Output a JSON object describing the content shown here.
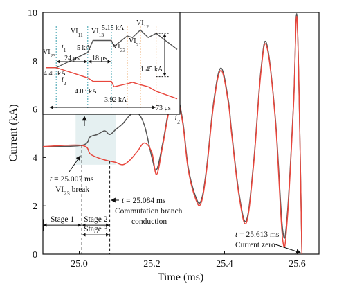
{
  "chart_data": {
    "type": "line",
    "xlabel": "Time (ms)",
    "ylabel": "Current (kA)",
    "xlim": [
      24.9,
      25.66
    ],
    "ylim": [
      0,
      10
    ],
    "xticks": [
      25.0,
      25.2,
      25.4,
      25.6
    ],
    "xtick_labels": [
      "25.0",
      "25.2",
      "25.4",
      "25.6"
    ],
    "yticks": [
      0,
      2,
      4,
      6,
      8,
      10
    ],
    "ytick_labels": [
      "0",
      "2",
      "4",
      "6",
      "8",
      "10"
    ],
    "grid": false,
    "series": [
      {
        "name": "i1",
        "label": "i",
        "sub": "1",
        "color": "#555555",
        "x": [
          24.9,
          25.007,
          25.03,
          25.05,
          25.07,
          25.084,
          25.1,
          25.12,
          25.14,
          25.16,
          25.18,
          25.2,
          25.213,
          25.23,
          25.25,
          25.268,
          25.285,
          25.3,
          25.32,
          25.335,
          25.35,
          25.37,
          25.39,
          25.41,
          25.42,
          25.44,
          25.46,
          25.48,
          25.5,
          25.516,
          25.54,
          25.56,
          25.573,
          25.59,
          25.6,
          25.613
        ],
        "y": [
          4.45,
          4.5,
          4.85,
          4.95,
          5.1,
          4.95,
          5.15,
          5.4,
          5.75,
          5.85,
          5.3,
          4.0,
          3.5,
          4.6,
          6.2,
          6.6,
          5.5,
          3.6,
          2.4,
          2.2,
          3.5,
          6.3,
          7.7,
          6.4,
          5.0,
          2.5,
          1.4,
          3.8,
          7.6,
          8.7,
          5.6,
          1.0,
          1.7,
          6.3,
          9.7,
          0.0
        ]
      },
      {
        "name": "i2",
        "label": "i",
        "sub": "2",
        "color": "#e8463c",
        "x": [
          24.9,
          25.007,
          25.03,
          25.05,
          25.07,
          25.084,
          25.1,
          25.12,
          25.14,
          25.16,
          25.18,
          25.2,
          25.213,
          25.23,
          25.25,
          25.268,
          25.285,
          25.3,
          25.32,
          25.335,
          25.35,
          25.37,
          25.39,
          25.41,
          25.42,
          25.44,
          25.46,
          25.48,
          25.5,
          25.516,
          25.54,
          25.56,
          25.573,
          25.59,
          25.6,
          25.613
        ],
        "y": [
          4.45,
          4.5,
          4.15,
          4.0,
          3.9,
          3.85,
          3.8,
          3.7,
          3.9,
          4.25,
          4.6,
          4.2,
          3.3,
          4.5,
          6.1,
          6.5,
          5.4,
          3.5,
          2.3,
          2.1,
          3.4,
          6.2,
          7.6,
          6.3,
          4.9,
          2.4,
          1.3,
          3.7,
          7.5,
          8.6,
          5.5,
          0.6,
          1.5,
          6.2,
          9.6,
          0.0
        ]
      }
    ],
    "series_labels": [
      {
        "series": "i1",
        "x": 25.27,
        "y": 6.95
      },
      {
        "series": "i2",
        "x": 25.27,
        "y": 5.55
      }
    ],
    "annotations": {
      "break": {
        "t_prefix": "t",
        "value_text": "= 25.007 ms",
        "line2_pre": "VI",
        "line2_sub": "23",
        "line2_post": " break",
        "x": 25.007
      },
      "commutation": {
        "t_prefix": "t",
        "value_text": "= 25.084 ms",
        "line2": "Commutation branch",
        "line3": "conduction",
        "x": 25.084
      },
      "zero": {
        "t_prefix": "t",
        "value_text": "= 25.613 ms",
        "line2": "Current zero",
        "x": 25.613
      },
      "stages": [
        {
          "label": "Stage 1",
          "x0": 24.9,
          "x1": 25.007,
          "y": 1.2
        },
        {
          "label": "Stage 2",
          "x0": 25.007,
          "x1": 25.084,
          "y": 1.2
        },
        {
          "label": "Stage 3",
          "x0": 25.007,
          "x1": 25.084,
          "y": 0.8
        }
      ],
      "highlight": {
        "x0": 24.99,
        "x1": 25.1,
        "y0": 3.7,
        "y1": 5.8
      }
    },
    "inset": {
      "xlim": [
        0,
        100
      ],
      "ylim": [
        3.0,
        6.2
      ],
      "series": [
        {
          "name": "i1",
          "label": "i",
          "sub": "1",
          "color": "#555555",
          "x": [
            0,
            8,
            32,
            36,
            50,
            52,
            62,
            66,
            72,
            78,
            84,
            100
          ],
          "y": [
            4.49,
            4.49,
            5.0,
            5.4,
            5.4,
            5.2,
            5.55,
            5.5,
            5.75,
            5.5,
            5.64,
            5.1
          ]
        },
        {
          "name": "i2",
          "label": "i",
          "sub": "2",
          "color": "#e8463c",
          "x": [
            0,
            8,
            32,
            36,
            50,
            52,
            62,
            66,
            72,
            78,
            84,
            100
          ],
          "y": [
            4.49,
            4.49,
            4.15,
            4.03,
            4.03,
            3.85,
            3.95,
            4.0,
            3.92,
            3.85,
            3.7,
            3.45
          ]
        }
      ],
      "event_lines": [
        {
          "x": 8,
          "color": "#3a9fae",
          "label": "VI",
          "sub": "23"
        },
        {
          "x": 32,
          "color": "#3a9fae",
          "label": "VI",
          "sub": "11"
        },
        {
          "x": 50,
          "color": "#3a9fae",
          "label": "VI",
          "sub": "13"
        },
        {
          "x": 62,
          "color": "#e07a1a",
          "label": "VI",
          "sub": "33"
        },
        {
          "x": 72,
          "color": "#e07a1a",
          "label": "VI",
          "sub": "21"
        },
        {
          "x": 84,
          "color": "#e07a1a",
          "label": "VI",
          "sub": "12"
        }
      ],
      "labels": {
        "peak": "5.15 kA",
        "mid": "5 kA",
        "start": "4.49 kA",
        "lower": "4.03 kA",
        "lower2": "3.92 kA",
        "delta": "1.45 kA",
        "dt1": "24 μs",
        "dt2": "18 μs",
        "dt3": "73 μs"
      }
    }
  }
}
